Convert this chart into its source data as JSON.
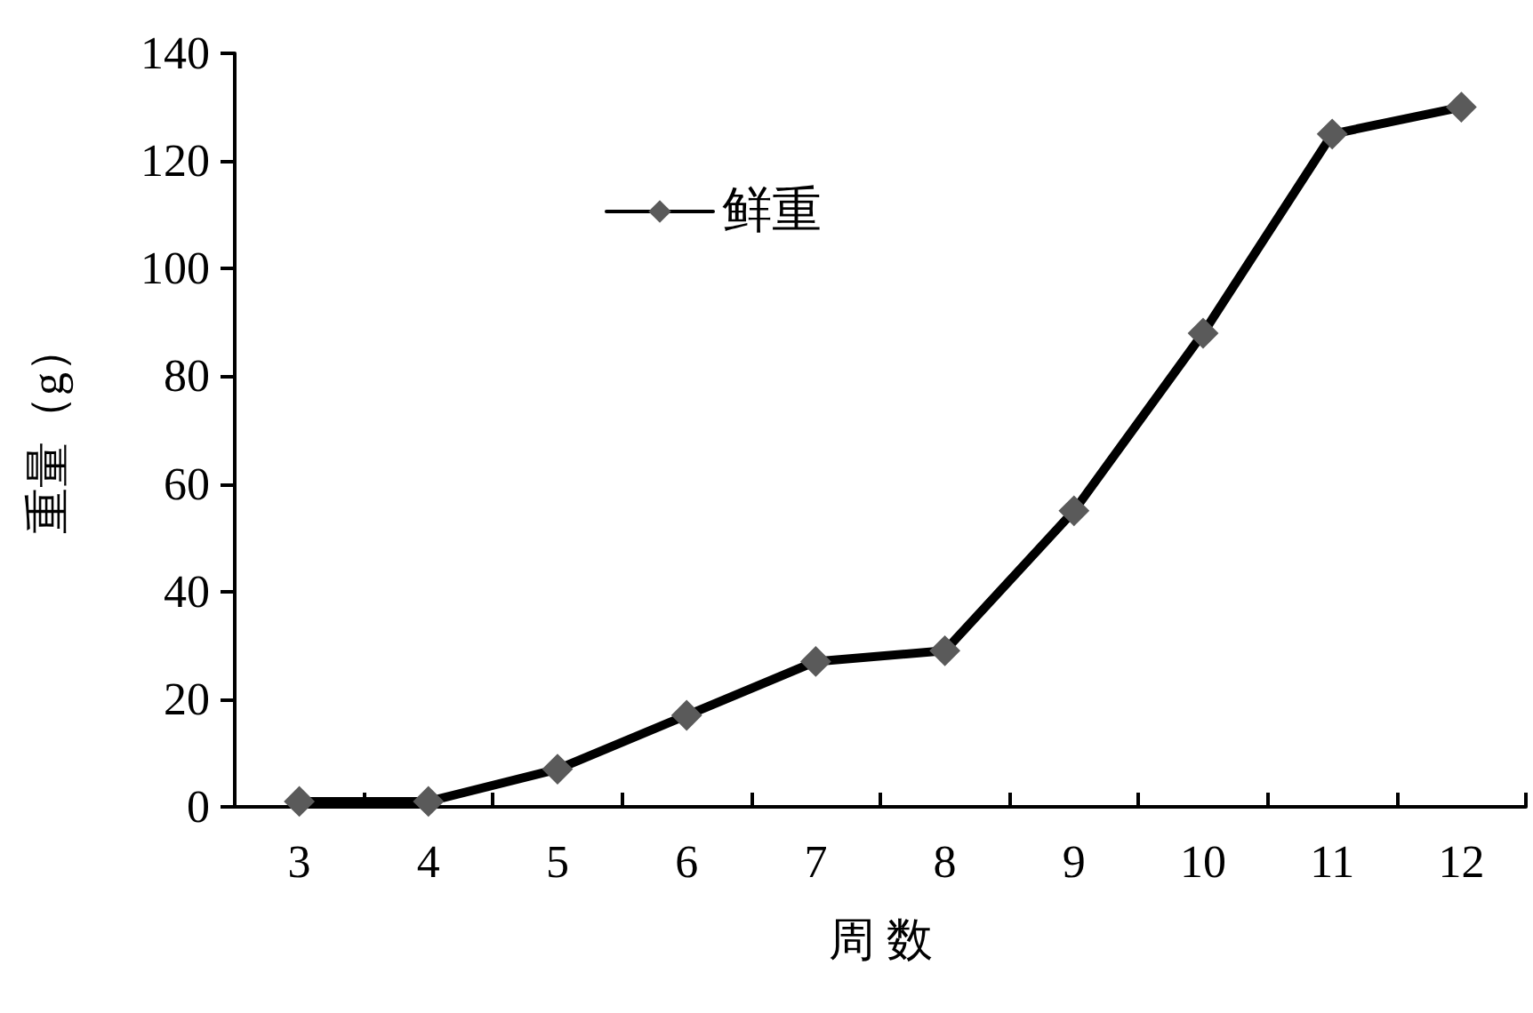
{
  "chart_data": {
    "type": "line",
    "xlabel": "周 数",
    "ylabel": "重量（g）",
    "categories": [
      "3",
      "4",
      "5",
      "6",
      "7",
      "8",
      "9",
      "10",
      "11",
      "12"
    ],
    "series": [
      {
        "name": "鲜重",
        "color": "#000000",
        "values": [
          1,
          1,
          7,
          17,
          27,
          29,
          55,
          88,
          125,
          130
        ]
      }
    ],
    "ylim": [
      0,
      140
    ],
    "yticks": [
      0,
      20,
      40,
      60,
      80,
      100,
      120,
      140
    ],
    "grid": false,
    "legend": "top left",
    "marker": "diamond",
    "line_style": "solid"
  }
}
